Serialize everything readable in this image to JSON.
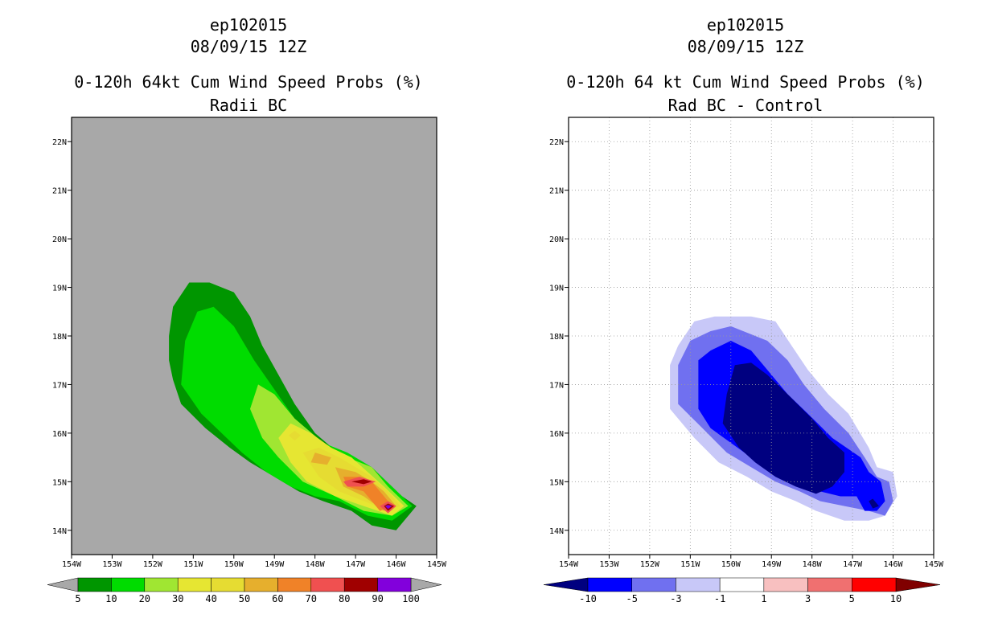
{
  "left_panel": {
    "storm_id": "ep102015",
    "datetime": "08/09/15 12Z",
    "title": "0-120h 64kt Cum Wind Speed Probs (%)",
    "subtitle": "Radii BC"
  },
  "right_panel": {
    "storm_id": "ep102015",
    "datetime": "08/09/15 12Z",
    "title": "0-120h 64 kt Cum Wind Speed Probs (%)",
    "subtitle": "Rad BC - Control"
  },
  "colors": {
    "land_bg": "#a8a8a8",
    "prob_scale": [
      "#009600",
      "#00dc00",
      "#a0e632",
      "#e6e632",
      "#e6dc32",
      "#e6af2d",
      "#f08228",
      "#f05050",
      "#a00000",
      "#8200dc"
    ],
    "diff_scale": [
      "#000080",
      "#0000ff",
      "#7070f0",
      "#c8c8f8",
      "#ffffff",
      "#f8c0c0",
      "#f07070",
      "#ff0000",
      "#800000"
    ]
  },
  "chart_data": [
    {
      "type": "heatmap",
      "title": "0-120h 64kt Cum Wind Speed Probs (%)",
      "subtitle": "Radii BC",
      "x_ticks": [
        "154W",
        "153W",
        "152W",
        "151W",
        "150W",
        "149W",
        "148W",
        "147W",
        "146W",
        "145W"
      ],
      "y_ticks": [
        "14N",
        "15N",
        "16N",
        "17N",
        "18N",
        "19N",
        "20N",
        "21N",
        "22N"
      ],
      "xlim": [
        -154,
        -145
      ],
      "ylim": [
        13.5,
        22.5
      ],
      "grid": false,
      "colorbar_levels": [
        "5",
        "10",
        "20",
        "30",
        "40",
        "50",
        "60",
        "70",
        "80",
        "90",
        "100"
      ],
      "contours": [
        {
          "level": 5,
          "points": [
            [
              -151.6,
              17.5
            ],
            [
              -151.6,
              18.0
            ],
            [
              -151.5,
              18.6
            ],
            [
              -151.1,
              19.1
            ],
            [
              -150.6,
              19.1
            ],
            [
              -150.0,
              18.9
            ],
            [
              -149.6,
              18.4
            ],
            [
              -149.3,
              17.8
            ],
            [
              -148.9,
              17.2
            ],
            [
              -148.5,
              16.6
            ],
            [
              -148.0,
              16.0
            ],
            [
              -147.3,
              15.5
            ],
            [
              -146.6,
              15.3
            ],
            [
              -146.2,
              14.9
            ],
            [
              -145.5,
              14.5
            ],
            [
              -146.0,
              14.0
            ],
            [
              -146.6,
              14.1
            ],
            [
              -147.1,
              14.4
            ],
            [
              -147.8,
              14.6
            ],
            [
              -148.4,
              14.8
            ],
            [
              -149.0,
              15.1
            ],
            [
              -149.6,
              15.4
            ],
            [
              -150.1,
              15.7
            ],
            [
              -150.7,
              16.1
            ],
            [
              -151.3,
              16.6
            ],
            [
              -151.5,
              17.1
            ]
          ]
        },
        {
          "level": 10,
          "points": [
            [
              -151.3,
              17.0
            ],
            [
              -151.2,
              17.9
            ],
            [
              -150.9,
              18.5
            ],
            [
              -150.5,
              18.6
            ],
            [
              -150.0,
              18.2
            ],
            [
              -149.5,
              17.5
            ],
            [
              -149.0,
              16.9
            ],
            [
              -148.5,
              16.3
            ],
            [
              -147.8,
              15.8
            ],
            [
              -147.2,
              15.6
            ],
            [
              -146.6,
              15.3
            ],
            [
              -146.1,
              14.9
            ],
            [
              -145.6,
              14.5
            ],
            [
              -146.1,
              14.2
            ],
            [
              -146.7,
              14.3
            ],
            [
              -147.4,
              14.6
            ],
            [
              -148.0,
              14.7
            ],
            [
              -148.6,
              14.9
            ],
            [
              -149.2,
              15.2
            ],
            [
              -149.8,
              15.6
            ],
            [
              -150.3,
              16.0
            ],
            [
              -150.8,
              16.4
            ]
          ]
        },
        {
          "level": 20,
          "points": [
            [
              -149.6,
              16.5
            ],
            [
              -149.4,
              17.0
            ],
            [
              -149.0,
              16.8
            ],
            [
              -148.5,
              16.3
            ],
            [
              -147.8,
              15.8
            ],
            [
              -147.2,
              15.5
            ],
            [
              -146.6,
              15.3
            ],
            [
              -146.2,
              14.9
            ],
            [
              -145.7,
              14.5
            ],
            [
              -146.1,
              14.3
            ],
            [
              -146.8,
              14.4
            ],
            [
              -147.5,
              14.7
            ],
            [
              -148.3,
              15.0
            ],
            [
              -148.9,
              15.5
            ],
            [
              -149.3,
              15.9
            ]
          ]
        },
        {
          "level": 30,
          "points": [
            [
              -148.9,
              15.9
            ],
            [
              -148.6,
              16.2
            ],
            [
              -148.1,
              16.0
            ],
            [
              -147.6,
              15.7
            ],
            [
              -147.1,
              15.5
            ],
            [
              -146.7,
              15.2
            ],
            [
              -146.3,
              14.9
            ],
            [
              -145.8,
              14.5
            ],
            [
              -146.1,
              14.3
            ],
            [
              -146.8,
              14.5
            ],
            [
              -147.5,
              14.7
            ],
            [
              -148.2,
              15.0
            ],
            [
              -148.6,
              15.4
            ]
          ]
        },
        {
          "level": 40,
          "points": [
            [
              -148.3,
              15.6
            ],
            [
              -147.9,
              15.7
            ],
            [
              -147.4,
              15.5
            ],
            [
              -147.0,
              15.3
            ],
            [
              -146.6,
              15.1
            ],
            [
              -146.2,
              14.8
            ],
            [
              -145.9,
              14.5
            ],
            [
              -146.2,
              14.4
            ],
            [
              -146.8,
              14.6
            ],
            [
              -147.4,
              14.8
            ],
            [
              -147.9,
              15.1
            ]
          ]
        },
        {
          "level": 50,
          "points": [
            [
              -147.5,
              15.3
            ],
            [
              -147.0,
              15.2
            ],
            [
              -146.6,
              15.0
            ],
            [
              -146.3,
              14.8
            ],
            [
              -146.0,
              14.5
            ],
            [
              -146.3,
              14.4
            ],
            [
              -146.8,
              14.7
            ],
            [
              -147.3,
              14.9
            ]
          ]
        },
        {
          "level": 60,
          "points": [
            [
              -147.3,
              15.1
            ],
            [
              -146.9,
              15.1
            ],
            [
              -146.6,
              15.0
            ],
            [
              -146.4,
              14.8
            ],
            [
              -146.1,
              14.5
            ],
            [
              -146.4,
              14.4
            ],
            [
              -146.8,
              14.8
            ],
            [
              -147.2,
              14.9
            ]
          ]
        },
        {
          "level": 70,
          "points": [
            [
              -147.3,
              15.0
            ],
            [
              -146.9,
              15.1
            ],
            [
              -146.5,
              15.0
            ],
            [
              -146.8,
              14.9
            ],
            [
              -147.2,
              14.9
            ]
          ]
        },
        {
          "level": 70,
          "points": [
            [
              -146.2,
              14.6
            ],
            [
              -146.0,
              14.5
            ],
            [
              -146.2,
              14.35
            ],
            [
              -146.4,
              14.5
            ]
          ]
        },
        {
          "level": 80,
          "points": [
            [
              -147.1,
              15.0
            ],
            [
              -146.8,
              15.05
            ],
            [
              -146.6,
              15.0
            ],
            [
              -146.8,
              14.95
            ]
          ]
        },
        {
          "level": 80,
          "points": [
            [
              -146.2,
              14.55
            ],
            [
              -146.05,
              14.5
            ],
            [
              -146.2,
              14.4
            ],
            [
              -146.3,
              14.5
            ]
          ]
        },
        {
          "level": 90,
          "points": [
            [
              -146.2,
              14.52
            ],
            [
              -146.1,
              14.5
            ],
            [
              -146.2,
              14.44
            ],
            [
              -146.27,
              14.5
            ]
          ]
        },
        {
          "level": 40,
          "points": [
            [
              -148.5,
              16.05
            ],
            [
              -148.35,
              15.95
            ],
            [
              -148.5,
              15.85
            ],
            [
              -148.65,
              15.95
            ]
          ]
        },
        {
          "level": 50,
          "points": [
            [
              -148.0,
              15.6
            ],
            [
              -147.6,
              15.5
            ],
            [
              -147.7,
              15.35
            ],
            [
              -148.1,
              15.4
            ]
          ]
        }
      ]
    },
    {
      "type": "heatmap",
      "title": "0-120h 64 kt Cum Wind Speed Probs (%)",
      "subtitle": "Rad BC - Control",
      "x_ticks": [
        "154W",
        "153W",
        "152W",
        "151W",
        "150W",
        "149W",
        "148W",
        "147W",
        "146W",
        "145W"
      ],
      "y_ticks": [
        "14N",
        "15N",
        "16N",
        "17N",
        "18N",
        "19N",
        "20N",
        "21N",
        "22N"
      ],
      "xlim": [
        -154,
        -145
      ],
      "ylim": [
        13.5,
        22.5
      ],
      "grid": true,
      "colorbar_levels": [
        "-10",
        "-5",
        "-3",
        "-1",
        "1",
        "3",
        "5",
        "10"
      ],
      "contours": [
        {
          "level": -1,
          "points": [
            [
              -151.5,
              16.5
            ],
            [
              -151.5,
              17.4
            ],
            [
              -151.3,
              17.8
            ],
            [
              -150.9,
              18.3
            ],
            [
              -150.4,
              18.4
            ],
            [
              -149.5,
              18.4
            ],
            [
              -148.9,
              18.3
            ],
            [
              -148.5,
              17.8
            ],
            [
              -148.1,
              17.3
            ],
            [
              -147.6,
              16.8
            ],
            [
              -147.1,
              16.4
            ],
            [
              -146.6,
              15.7
            ],
            [
              -146.4,
              15.3
            ],
            [
              -146.0,
              15.2
            ],
            [
              -145.9,
              14.7
            ],
            [
              -146.2,
              14.3
            ],
            [
              -146.6,
              14.2
            ],
            [
              -147.2,
              14.2
            ],
            [
              -147.9,
              14.4
            ],
            [
              -148.4,
              14.6
            ],
            [
              -149.0,
              14.8
            ],
            [
              -149.6,
              15.1
            ],
            [
              -150.3,
              15.4
            ],
            [
              -150.9,
              15.9
            ]
          ]
        },
        {
          "level": -3,
          "points": [
            [
              -151.3,
              16.6
            ],
            [
              -151.3,
              17.4
            ],
            [
              -151.0,
              17.9
            ],
            [
              -150.5,
              18.1
            ],
            [
              -150.0,
              18.2
            ],
            [
              -149.1,
              17.9
            ],
            [
              -148.6,
              17.5
            ],
            [
              -148.2,
              17.0
            ],
            [
              -147.7,
              16.5
            ],
            [
              -147.1,
              16.0
            ],
            [
              -146.7,
              15.5
            ],
            [
              -146.4,
              15.1
            ],
            [
              -146.1,
              15.0
            ],
            [
              -146.0,
              14.6
            ],
            [
              -146.2,
              14.3
            ],
            [
              -146.6,
              14.4
            ],
            [
              -147.2,
              14.5
            ],
            [
              -147.8,
              14.6
            ],
            [
              -148.3,
              14.8
            ],
            [
              -148.9,
              15.0
            ],
            [
              -149.5,
              15.3
            ],
            [
              -150.1,
              15.6
            ],
            [
              -150.7,
              16.1
            ]
          ]
        },
        {
          "level": -5,
          "points": [
            [
              -150.8,
              16.5
            ],
            [
              -150.8,
              17.5
            ],
            [
              -150.5,
              17.7
            ],
            [
              -150.0,
              17.9
            ],
            [
              -149.5,
              17.7
            ],
            [
              -149.1,
              17.3
            ],
            [
              -148.6,
              16.8
            ],
            [
              -148.1,
              16.4
            ],
            [
              -147.5,
              15.9
            ],
            [
              -146.8,
              15.5
            ],
            [
              -146.6,
              15.2
            ],
            [
              -146.3,
              15.0
            ],
            [
              -146.2,
              14.6
            ],
            [
              -146.4,
              14.4
            ],
            [
              -146.7,
              14.4
            ],
            [
              -146.9,
              14.7
            ],
            [
              -147.3,
              14.7
            ],
            [
              -147.8,
              14.8
            ],
            [
              -148.3,
              15.0
            ],
            [
              -148.9,
              15.2
            ],
            [
              -149.5,
              15.5
            ],
            [
              -150.0,
              15.8
            ],
            [
              -150.5,
              16.1
            ]
          ]
        },
        {
          "level": -10,
          "points": [
            [
              -150.2,
              16.2
            ],
            [
              -150.1,
              16.8
            ],
            [
              -149.9,
              17.4
            ],
            [
              -149.5,
              17.45
            ],
            [
              -149.1,
              17.2
            ],
            [
              -148.6,
              16.8
            ],
            [
              -148.0,
              16.3
            ],
            [
              -147.6,
              15.9
            ],
            [
              -147.2,
              15.6
            ],
            [
              -147.2,
              15.2
            ],
            [
              -147.5,
              14.9
            ],
            [
              -147.9,
              14.75
            ],
            [
              -148.4,
              14.9
            ],
            [
              -148.9,
              15.1
            ],
            [
              -149.4,
              15.4
            ],
            [
              -149.8,
              15.7
            ]
          ]
        },
        {
          "level": -10,
          "points": [
            [
              -146.6,
              14.6
            ],
            [
              -146.5,
              14.45
            ],
            [
              -146.35,
              14.5
            ],
            [
              -146.5,
              14.65
            ]
          ]
        }
      ]
    }
  ]
}
